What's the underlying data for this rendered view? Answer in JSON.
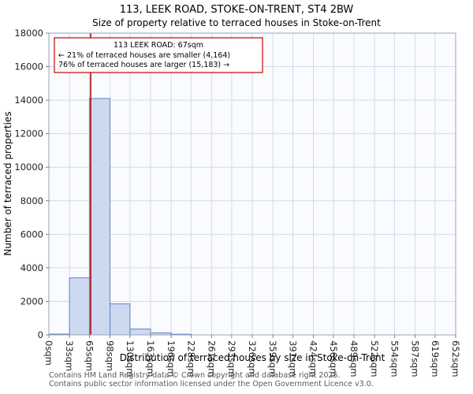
{
  "title": "113, LEEK ROAD, STOKE-ON-TRENT, ST4 2BW",
  "subtitle": "Size of property relative to terraced houses in Stoke-on-Trent",
  "footer": {
    "line1": "Contains HM Land Registry data © Crown copyright and database right 2025.",
    "line2": "Contains public sector information licensed under the Open Government Licence v3.0."
  },
  "chart_data": {
    "type": "bar",
    "title": "113, LEEK ROAD, STOKE-ON-TRENT, ST4 2BW",
    "subtitle": "Size of property relative to terraced houses in Stoke-on-Trent",
    "xlabel": "Distribution of terraced houses by size in Stoke-on-Trent",
    "ylabel": "Number of terraced properties",
    "xlim": [
      0,
      652
    ],
    "ylim": [
      0,
      18000
    ],
    "grid": true,
    "x_tick_labels": [
      "0sqm",
      "33sqm",
      "65sqm",
      "98sqm",
      "130sqm",
      "163sqm",
      "196sqm",
      "228sqm",
      "261sqm",
      "293sqm",
      "326sqm",
      "359sqm",
      "391sqm",
      "424sqm",
      "456sqm",
      "489sqm",
      "522sqm",
      "554sqm",
      "587sqm",
      "619sqm",
      "652sqm"
    ],
    "bin_edges": [
      0,
      33,
      65,
      98,
      130,
      163,
      196,
      228,
      261,
      293,
      326,
      359,
      391,
      424,
      456,
      489,
      522,
      554,
      587,
      619,
      652
    ],
    "counts": [
      50,
      3400,
      14100,
      1850,
      350,
      120,
      40,
      0,
      0,
      0,
      0,
      0,
      0,
      0,
      0,
      0,
      0,
      0,
      0,
      0
    ],
    "y_ticks": [
      0,
      2000,
      4000,
      6000,
      8000,
      10000,
      12000,
      14000,
      16000,
      18000
    ],
    "property_line_sqm": 67,
    "annotation": {
      "lines": [
        "113 LEEK ROAD: 67sqm",
        "← 21% of terraced houses are smaller (4,164)",
        "76% of terraced houses are larger (15,183) →"
      ]
    },
    "colors": {
      "bar_fill": "#cdd9ef",
      "bar_edge": "#5b84c4",
      "property_line": "#a00000",
      "annotation_border": "#cc0000",
      "grid": "#d4daea",
      "plot_bg": "#fafbff",
      "spine": "#9aa3b8"
    }
  }
}
